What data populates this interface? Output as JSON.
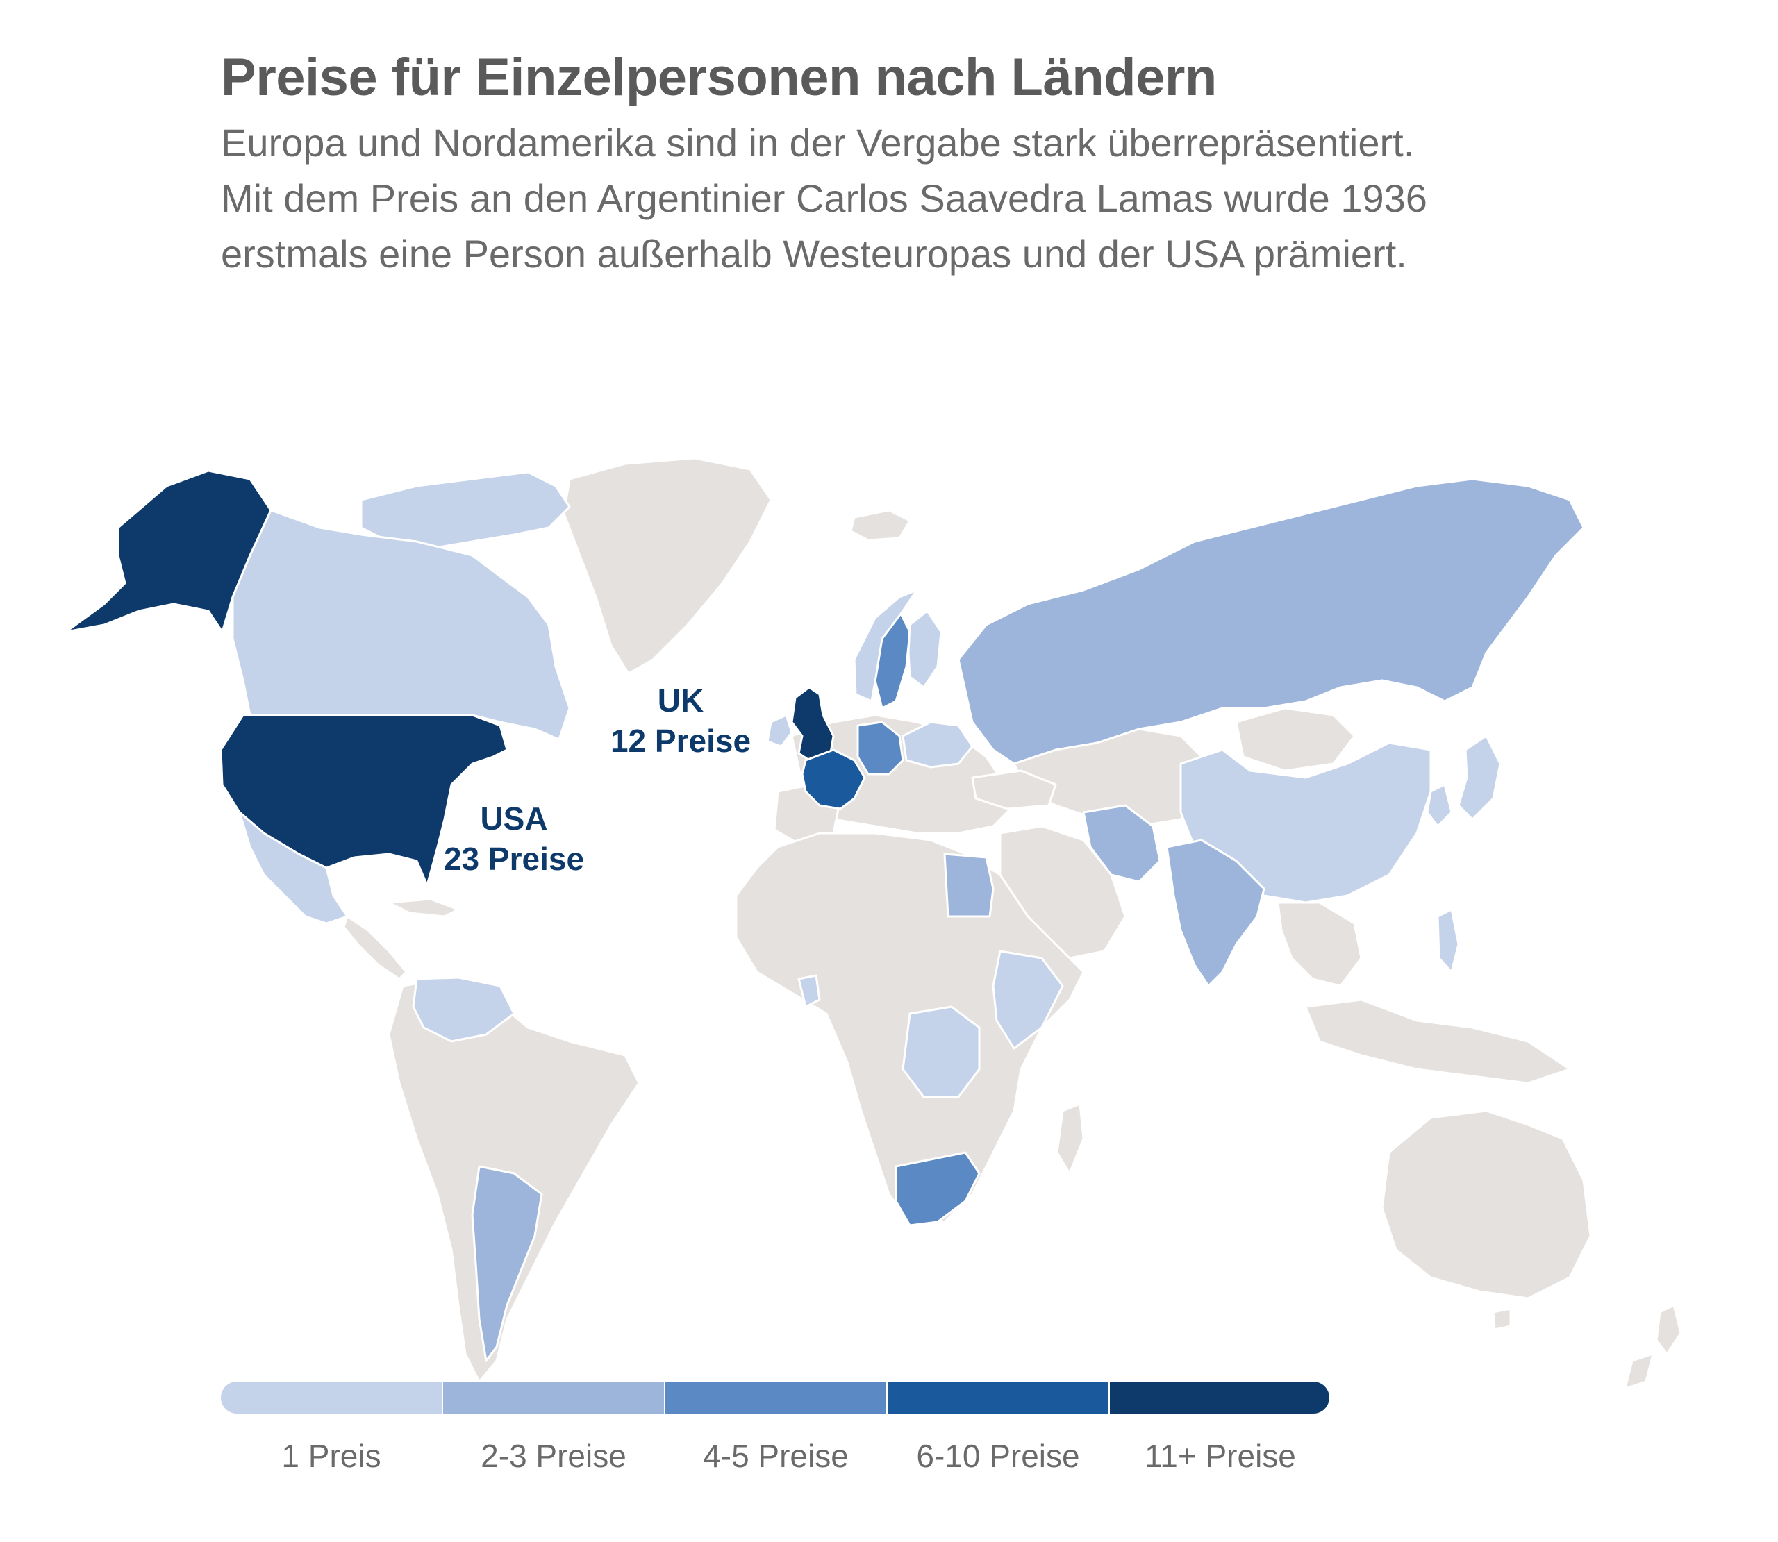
{
  "header": {
    "title": "Preise für Einzelpersonen nach Ländern",
    "subtitle_lines": [
      "Europa und Nordamerika sind in der Vergabe stark überrepräsentiert.",
      "Mit dem Preis an den Argentinier Carlos Saavedra Lamas wurde 1936",
      "erstmals eine Person außerhalb Westeuropas und der USA prämiert."
    ]
  },
  "callouts": {
    "uk": {
      "country": "UK",
      "count": "12 Preise"
    },
    "usa": {
      "country": "USA",
      "count": "23 Preise"
    }
  },
  "legend": {
    "buckets": [
      {
        "label": "1 Preis",
        "color": "#c5d3ea"
      },
      {
        "label": "2-3 Preise",
        "color": "#9db4db"
      },
      {
        "label": "4-5 Preise",
        "color": "#5b89c4"
      },
      {
        "label": "6-10 Preise",
        "color": "#1a5a9c"
      },
      {
        "label": "11+ Preise",
        "color": "#0d3a6b"
      }
    ]
  },
  "colors": {
    "no_prize": "#e5e1de",
    "border": "#ffffff"
  }
}
